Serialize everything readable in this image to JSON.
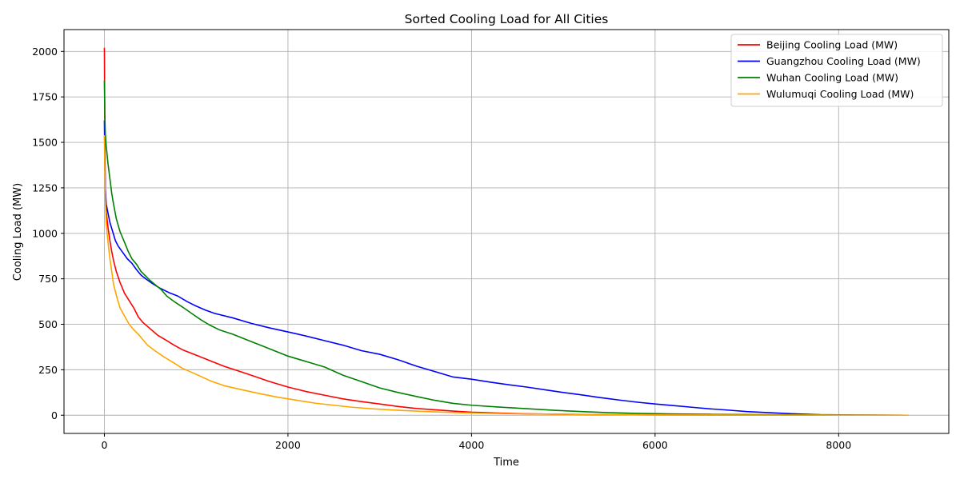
{
  "chart_data": {
    "type": "line",
    "title": "Sorted Cooling Load for All Cities",
    "xlabel": "Time",
    "ylabel": "Cooling Load (MW)",
    "xlim": [
      -440,
      9200
    ],
    "ylim": [
      -100,
      2120
    ],
    "x_ticks": [
      0,
      2000,
      4000,
      6000,
      8000
    ],
    "y_ticks": [
      0,
      250,
      500,
      750,
      1000,
      1250,
      1500,
      1750,
      2000
    ],
    "grid": true,
    "legend_position": "top-right",
    "series": [
      {
        "name": "Beijing Cooling Load (MW)",
        "color": "#ff0000",
        "points": [
          [
            0,
            2020
          ],
          [
            5,
            1550
          ],
          [
            10,
            1250
          ],
          [
            20,
            1120
          ],
          [
            40,
            1030
          ],
          [
            60,
            960
          ],
          [
            80,
            900
          ],
          [
            100,
            850
          ],
          [
            130,
            790
          ],
          [
            170,
            730
          ],
          [
            220,
            670
          ],
          [
            270,
            630
          ],
          [
            320,
            590
          ],
          [
            370,
            540
          ],
          [
            420,
            510
          ],
          [
            500,
            475
          ],
          [
            580,
            440
          ],
          [
            680,
            410
          ],
          [
            760,
            385
          ],
          [
            850,
            360
          ],
          [
            1000,
            330
          ],
          [
            1150,
            300
          ],
          [
            1300,
            270
          ],
          [
            1450,
            245
          ],
          [
            1600,
            220
          ],
          [
            1800,
            185
          ],
          [
            2000,
            155
          ],
          [
            2200,
            130
          ],
          [
            2400,
            110
          ],
          [
            2600,
            90
          ],
          [
            2800,
            75
          ],
          [
            3000,
            62
          ],
          [
            3200,
            48
          ],
          [
            3400,
            37
          ],
          [
            3600,
            30
          ],
          [
            3800,
            23
          ],
          [
            4000,
            17
          ],
          [
            4300,
            12
          ],
          [
            4600,
            8
          ],
          [
            5000,
            5
          ],
          [
            5500,
            3
          ],
          [
            6000,
            2
          ],
          [
            7000,
            1
          ],
          [
            8000,
            0.5
          ],
          [
            8760,
            0
          ]
        ]
      },
      {
        "name": "Guangzhou Cooling Load (MW)",
        "color": "#0000ff",
        "points": [
          [
            0,
            1620
          ],
          [
            5,
            1400
          ],
          [
            10,
            1250
          ],
          [
            20,
            1160
          ],
          [
            40,
            1110
          ],
          [
            60,
            1060
          ],
          [
            90,
            1010
          ],
          [
            120,
            960
          ],
          [
            150,
            930
          ],
          [
            200,
            895
          ],
          [
            250,
            860
          ],
          [
            300,
            835
          ],
          [
            350,
            800
          ],
          [
            400,
            770
          ],
          [
            450,
            750
          ],
          [
            520,
            725
          ],
          [
            600,
            700
          ],
          [
            700,
            675
          ],
          [
            800,
            655
          ],
          [
            900,
            625
          ],
          [
            1000,
            600
          ],
          [
            1100,
            578
          ],
          [
            1200,
            560
          ],
          [
            1400,
            535
          ],
          [
            1600,
            505
          ],
          [
            1800,
            480
          ],
          [
            2000,
            458
          ],
          [
            2200,
            435
          ],
          [
            2400,
            410
          ],
          [
            2600,
            385
          ],
          [
            2800,
            355
          ],
          [
            3000,
            335
          ],
          [
            3200,
            305
          ],
          [
            3400,
            270
          ],
          [
            3600,
            240
          ],
          [
            3800,
            210
          ],
          [
            4000,
            198
          ],
          [
            4200,
            182
          ],
          [
            4400,
            168
          ],
          [
            4600,
            155
          ],
          [
            4800,
            140
          ],
          [
            5000,
            125
          ],
          [
            5200,
            112
          ],
          [
            5400,
            97
          ],
          [
            5600,
            84
          ],
          [
            5800,
            72
          ],
          [
            6000,
            62
          ],
          [
            6200,
            53
          ],
          [
            6400,
            44
          ],
          [
            6600,
            35
          ],
          [
            6800,
            28
          ],
          [
            7000,
            20
          ],
          [
            7200,
            15
          ],
          [
            7500,
            8
          ],
          [
            7800,
            3
          ],
          [
            8200,
            1
          ],
          [
            8760,
            0
          ]
        ]
      },
      {
        "name": "Wuhan Cooling Load (MW)",
        "color": "#008000",
        "points": [
          [
            0,
            1840
          ],
          [
            5,
            1650
          ],
          [
            10,
            1550
          ],
          [
            20,
            1480
          ],
          [
            40,
            1380
          ],
          [
            60,
            1300
          ],
          [
            80,
            1220
          ],
          [
            100,
            1160
          ],
          [
            130,
            1080
          ],
          [
            170,
            1010
          ],
          [
            220,
            950
          ],
          [
            260,
            900
          ],
          [
            300,
            860
          ],
          [
            350,
            830
          ],
          [
            400,
            790
          ],
          [
            450,
            765
          ],
          [
            500,
            740
          ],
          [
            560,
            715
          ],
          [
            620,
            690
          ],
          [
            680,
            655
          ],
          [
            760,
            625
          ],
          [
            850,
            595
          ],
          [
            950,
            560
          ],
          [
            1050,
            525
          ],
          [
            1150,
            495
          ],
          [
            1250,
            470
          ],
          [
            1400,
            445
          ],
          [
            1550,
            415
          ],
          [
            1700,
            385
          ],
          [
            1850,
            355
          ],
          [
            2000,
            325
          ],
          [
            2200,
            295
          ],
          [
            2400,
            265
          ],
          [
            2600,
            220
          ],
          [
            2800,
            185
          ],
          [
            3000,
            150
          ],
          [
            3200,
            125
          ],
          [
            3400,
            103
          ],
          [
            3600,
            82
          ],
          [
            3800,
            65
          ],
          [
            4000,
            55
          ],
          [
            4300,
            45
          ],
          [
            4600,
            36
          ],
          [
            4900,
            27
          ],
          [
            5200,
            20
          ],
          [
            5500,
            14
          ],
          [
            5800,
            10
          ],
          [
            6200,
            7
          ],
          [
            6600,
            5
          ],
          [
            7200,
            3
          ],
          [
            8000,
            1
          ],
          [
            8760,
            0
          ]
        ]
      },
      {
        "name": "Wulumuqi Cooling Load (MW)",
        "color": "#ffa500",
        "points": [
          [
            0,
            1540
          ],
          [
            5,
            1350
          ],
          [
            10,
            1200
          ],
          [
            20,
            1050
          ],
          [
            40,
            950
          ],
          [
            60,
            860
          ],
          [
            80,
            790
          ],
          [
            100,
            720
          ],
          [
            130,
            660
          ],
          [
            170,
            590
          ],
          [
            220,
            545
          ],
          [
            270,
            500
          ],
          [
            320,
            470
          ],
          [
            370,
            445
          ],
          [
            420,
            415
          ],
          [
            470,
            385
          ],
          [
            550,
            355
          ],
          [
            650,
            320
          ],
          [
            750,
            290
          ],
          [
            850,
            258
          ],
          [
            1000,
            225
          ],
          [
            1150,
            190
          ],
          [
            1300,
            163
          ],
          [
            1500,
            140
          ],
          [
            1700,
            118
          ],
          [
            1900,
            98
          ],
          [
            2100,
            82
          ],
          [
            2300,
            66
          ],
          [
            2500,
            55
          ],
          [
            2700,
            44
          ],
          [
            2900,
            36
          ],
          [
            3100,
            30
          ],
          [
            3300,
            25
          ],
          [
            3500,
            20
          ],
          [
            3800,
            15
          ],
          [
            4100,
            11
          ],
          [
            4500,
            8
          ],
          [
            5000,
            5
          ],
          [
            5500,
            3
          ],
          [
            6000,
            2
          ],
          [
            7000,
            1
          ],
          [
            8000,
            0.5
          ],
          [
            8760,
            0
          ]
        ]
      }
    ]
  }
}
